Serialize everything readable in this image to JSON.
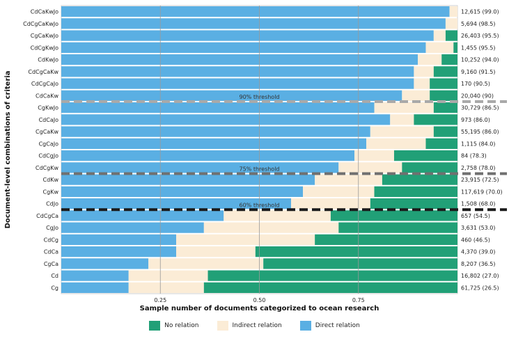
{
  "chart_data": {
    "type": "bar",
    "orientation": "horizontal",
    "stacked": true,
    "title": "",
    "xlabel": "Sample number of documents categorized to ocean research",
    "ylabel": "Document-level combinations of criteria",
    "xlim": [
      0,
      1
    ],
    "xticks": [
      0.25,
      0.5,
      0.75
    ],
    "xtick_labels": [
      "0.25",
      "0.50",
      "0.75"
    ],
    "grid": "vertical",
    "legend_position": "bottom",
    "categories": [
      "CdCaKwJo",
      "CdCgCaKwJo",
      "CgCaKwJo",
      "CdCgKwJo",
      "CdKwJo",
      "CdCgCaKw",
      "CdCgCaJo",
      "CdCaKw",
      "CgKwJo",
      "CdCaJo",
      "CgCaKw",
      "CgCaJo",
      "CdCgJo",
      "CdCgKw",
      "CdKw",
      "CgKw",
      "CdJo",
      "CdCgCa",
      "CgJo",
      "CdCg",
      "CdCa",
      "CgCa",
      "Cd",
      "Cg"
    ],
    "right_labels": [
      "12,615 (99.0)",
      "5,694 (98.5)",
      "26,403 (95.5)",
      "1,455 (95.5)",
      "10,252 (94.0)",
      "9,160 (91.5)",
      "170 (90.5)",
      "20,040 (90)",
      "30,729 (86.5)",
      "973 (86.0)",
      "55,195 (86.0)",
      "1,115 (84.0)",
      "84 (78.3)",
      "2,758 (78.0)",
      "23,915 (72.5)",
      "117,619 (70.0)",
      "1,508 (68.0)",
      "657 (54.5)",
      "3,631 (53.0)",
      "460 (46.5)",
      "4,370 (39.0)",
      "8,207 (36.5)",
      "16,802 (27.0)",
      "61,725 (26.5)"
    ],
    "series": [
      {
        "name": "Direct relation",
        "color": "#5aafe3",
        "values": [
          0.98,
          0.97,
          0.94,
          0.92,
          0.9,
          0.89,
          0.89,
          0.86,
          0.79,
          0.83,
          0.78,
          0.77,
          0.74,
          0.7,
          0.64,
          0.61,
          0.58,
          0.41,
          0.36,
          0.29,
          0.29,
          0.22,
          0.17,
          0.17
        ]
      },
      {
        "name": "Indirect relation",
        "color": "#fbecd6",
        "values": [
          0.02,
          0.03,
          0.03,
          0.07,
          0.06,
          0.05,
          0.04,
          0.07,
          0.15,
          0.06,
          0.16,
          0.15,
          0.1,
          0.16,
          0.17,
          0.18,
          0.2,
          0.27,
          0.34,
          0.35,
          0.2,
          0.29,
          0.2,
          0.19
        ]
      },
      {
        "name": "No relation",
        "color": "#21a077",
        "values": [
          0.0,
          0.0,
          0.03,
          0.01,
          0.04,
          0.06,
          0.07,
          0.07,
          0.06,
          0.11,
          0.06,
          0.08,
          0.16,
          0.14,
          0.19,
          0.21,
          0.22,
          0.32,
          0.3,
          0.36,
          0.51,
          0.49,
          0.63,
          0.64
        ]
      }
    ],
    "thresholds": [
      {
        "label": "90% threshold",
        "after_index": 7,
        "color": "#a9a9a9"
      },
      {
        "label": "75% threshold",
        "after_index": 13,
        "color": "#707070"
      },
      {
        "label": "60% threshold",
        "after_index": 16,
        "color": "#1a1a1a"
      }
    ]
  },
  "legend": {
    "items": [
      {
        "label": "No relation",
        "color": "#21a077"
      },
      {
        "label": "Indirect relation",
        "color": "#fbecd6"
      },
      {
        "label": "Direct relation",
        "color": "#5aafe3"
      }
    ]
  }
}
